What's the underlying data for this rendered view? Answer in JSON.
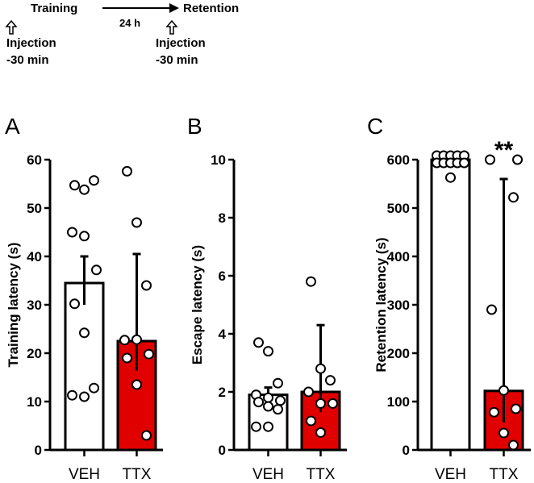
{
  "protocol": {
    "training": "Training",
    "interval": "24 h",
    "retention": "Retention",
    "injection1": "Injection",
    "time1": "-30 min",
    "injection2": "Injection",
    "time2": "-30 min"
  },
  "colors": {
    "veh": "#ffffff",
    "ttx": "#e00000",
    "axis": "#000000"
  },
  "chart_data": [
    {
      "type": "bar",
      "panel": "A",
      "ylabel": "Training latency (s)",
      "ylim": [
        0,
        60
      ],
      "yticks": [
        0,
        10,
        20,
        30,
        40,
        50,
        60
      ],
      "categories": [
        "VEH",
        "TTX"
      ],
      "values": [
        34.5,
        22.5
      ],
      "error": [
        [
          30,
          40
        ],
        [
          16.4,
          40.5
        ]
      ],
      "points": [
        [
          54.7,
          53.8,
          55.7,
          45,
          44.2,
          37.2,
          30.2,
          24.2,
          12.8,
          11.3,
          11
        ],
        [
          57.6,
          47,
          34,
          22.7,
          22.8,
          19.8,
          19,
          13.5,
          3
        ]
      ],
      "significance": ""
    },
    {
      "type": "bar",
      "panel": "B",
      "ylabel": "Escape latency (s)",
      "ylim": [
        0,
        10
      ],
      "yticks": [
        0,
        2,
        4,
        6,
        8,
        10
      ],
      "categories": [
        "VEH",
        "TTX"
      ],
      "values": [
        1.9,
        2.0
      ],
      "error": [
        [
          1.65,
          2.15
        ],
        [
          1.3,
          4.3
        ]
      ],
      "points": [
        [
          3.7,
          3.4,
          2.3,
          1.9,
          1.8,
          1.7,
          1.65,
          1.5,
          1.4,
          0.8,
          0.8
        ],
        [
          5.8,
          2.8,
          2.4,
          2.0,
          1.6,
          1.6,
          1.0,
          0.6
        ]
      ],
      "significance": ""
    },
    {
      "type": "bar",
      "panel": "C",
      "ylabel": "Retention latency (s)",
      "ylim": [
        0,
        600
      ],
      "yticks": [
        0,
        100,
        200,
        300,
        400,
        500,
        600
      ],
      "categories": [
        "VEH",
        "TTX"
      ],
      "values": [
        600,
        122
      ],
      "error": [
        [
          600,
          600
        ],
        [
          57,
          560
        ]
      ],
      "points": [
        [
          600,
          600,
          600,
          600,
          600,
          600,
          600,
          600,
          600,
          600,
          563
        ],
        [
          600,
          600,
          522,
          290,
          123,
          85,
          78,
          35,
          10
        ]
      ],
      "significance": "**"
    }
  ]
}
